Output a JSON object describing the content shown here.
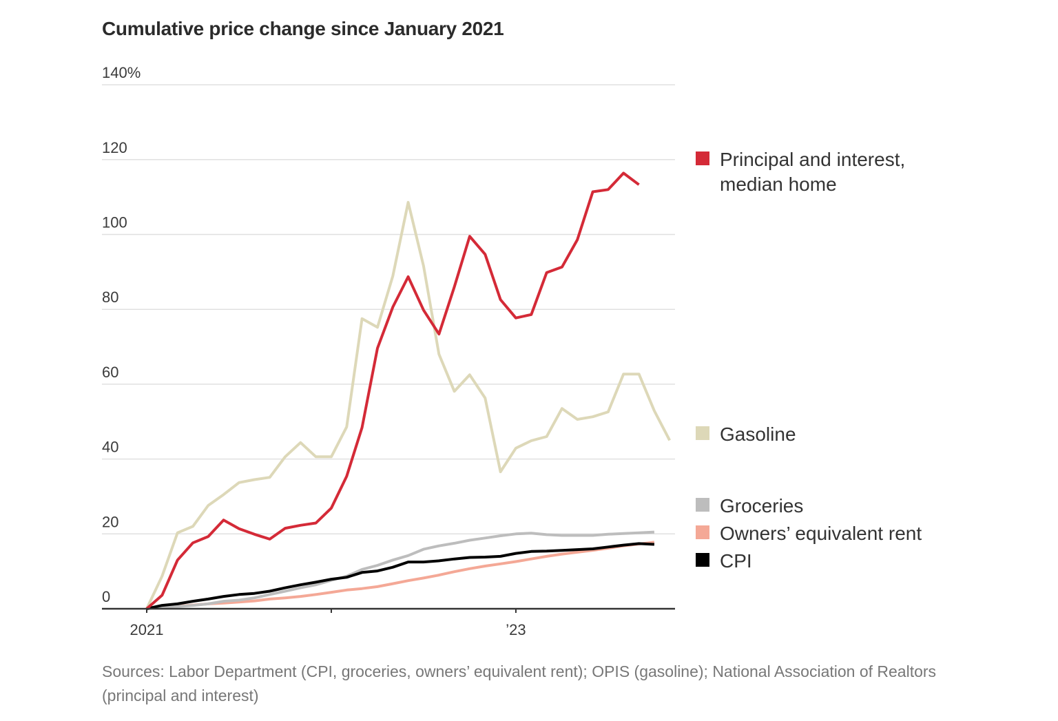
{
  "chart_data": {
    "type": "line",
    "title": "Cumulative price change since January 2021",
    "xlabel": "",
    "ylabel": "",
    "y_unit": "%",
    "ylim": [
      0,
      140
    ],
    "yticks": [
      0,
      20,
      40,
      60,
      80,
      100,
      120,
      140
    ],
    "ytick_labels": [
      "0",
      "20",
      "40",
      "60",
      "80",
      "100",
      "120",
      "140%"
    ],
    "x_start": "2021-01",
    "x_unit": "month",
    "xlim_months": [
      0,
      36
    ],
    "xticks": [
      {
        "month_index": 0,
        "label": "2021"
      },
      {
        "month_index": 12,
        "label": ""
      },
      {
        "month_index": 24,
        "label": "’23"
      }
    ],
    "grid": true,
    "legend_position": "right",
    "series": [
      {
        "name": "Principal and interest, median home",
        "legend_lines": [
          "Principal and interest,",
          "median home"
        ],
        "color": "#D42A37",
        "values": [
          0,
          3.6,
          13,
          17.6,
          19.3,
          23.7,
          21.4,
          19.9,
          18.6,
          21.5,
          22.3,
          22.9,
          26.9,
          35.4,
          48.4,
          69.6,
          80.6,
          88.7,
          79.8,
          73.4,
          86,
          99.5,
          94.7,
          82.6,
          77.7,
          78.6,
          89.8,
          91.3,
          98.6,
          111.4,
          112,
          116.4,
          113.3
        ]
      },
      {
        "name": "Gasoline",
        "legend_lines": [
          "Gasoline"
        ],
        "color": "#DDD8B8",
        "values": [
          0,
          8.7,
          20.3,
          22,
          27.6,
          30.5,
          33.7,
          34.5,
          35.1,
          40.6,
          44.4,
          40.6,
          40.6,
          48.6,
          77.5,
          75.2,
          88.9,
          108.6,
          91.6,
          68,
          58.1,
          62.5,
          56.3,
          36.6,
          42.9,
          44.9,
          46,
          53.5,
          50.6,
          51.3,
          52.6,
          62.7,
          62.7,
          52.9,
          45
        ]
      },
      {
        "name": "Groceries",
        "legend_lines": [
          "Groceries"
        ],
        "color": "#BDBDBD",
        "values": [
          0,
          0.5,
          0.6,
          0.9,
          1.3,
          2,
          2.3,
          2.9,
          3.8,
          4.7,
          5.6,
          6.4,
          7.6,
          8.7,
          10.5,
          11.6,
          13,
          14.2,
          15.9,
          16.8,
          17.5,
          18.3,
          18.9,
          19.5,
          20,
          20.2,
          19.8,
          19.6,
          19.6,
          19.6,
          19.9,
          20.1,
          20.3,
          20.5
        ]
      },
      {
        "name": "Owners’ equivalent rent",
        "legend_lines": [
          "Owners’ equivalent rent"
        ],
        "color": "#F4A896",
        "values": [
          0,
          0.6,
          0.7,
          1,
          1.3,
          1.5,
          1.8,
          2.1,
          2.6,
          2.9,
          3.3,
          3.8,
          4.4,
          5,
          5.4,
          5.9,
          6.7,
          7.5,
          8.2,
          9,
          9.9,
          10.7,
          11.4,
          12,
          12.6,
          13.3,
          14,
          14.6,
          15.1,
          15.6,
          16.2,
          16.8,
          17.3,
          17.8
        ]
      },
      {
        "name": "CPI",
        "legend_lines": [
          "CPI"
        ],
        "color": "#000000",
        "values": [
          0,
          0.9,
          1.3,
          2,
          2.6,
          3.3,
          3.8,
          4.1,
          4.7,
          5.6,
          6.4,
          7.1,
          7.9,
          8.4,
          9.7,
          10.1,
          11.1,
          12.5,
          12.5,
          12.8,
          13.3,
          13.7,
          13.8,
          14,
          14.8,
          15.3,
          15.4,
          15.6,
          15.8,
          16,
          16.5,
          17,
          17.4,
          17.2
        ]
      }
    ],
    "draw_order": [
      "Owners’ equivalent rent",
      "Groceries",
      "CPI",
      "Gasoline",
      "Principal and interest, median home"
    ],
    "source": "Sources: Labor Department (CPI, groceries, owners’ equivalent rent); OPIS (gasoline); National Association of Realtors (principal and interest)"
  }
}
